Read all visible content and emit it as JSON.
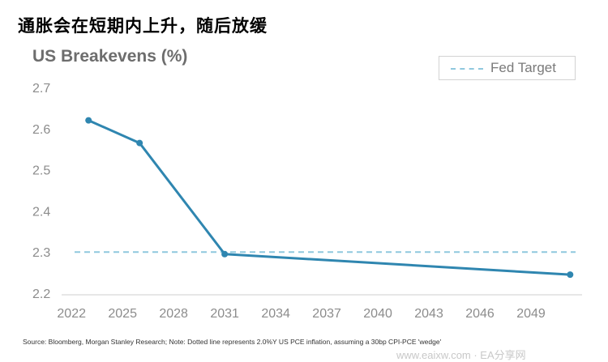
{
  "page": {
    "heading": "通胀会在短期内上升，随后放缓",
    "source": "Source: Bloomberg, Morgan Stanley Research; Note: Dotted line represents 2.0%Y US PCE inflation, assuming a 30bp CPI-PCE 'wedge'",
    "watermark": "www.eaixw.com · EA分享网"
  },
  "colors": {
    "series": "#2f86b0",
    "target": "#8fc8de",
    "axis": "#cfcfcf",
    "tick_text": "#8c8c8c"
  },
  "chart_data": {
    "type": "line",
    "title": "US Breakevens (%)",
    "xlabel": "",
    "ylabel": "",
    "x_ticks": [
      "2022",
      "2025",
      "2028",
      "2031",
      "2034",
      "2037",
      "2040",
      "2043",
      "2046",
      "2049"
    ],
    "y_ticks": [
      "2.2",
      "2.3",
      "2.4",
      "2.5",
      "2.6",
      "2.7"
    ],
    "xlim": [
      2021.8,
      2052
    ],
    "ylim": [
      2.2,
      2.7
    ],
    "grid": false,
    "legend_position": "top-right",
    "series": [
      {
        "name": "",
        "x": [
          2023,
          2026,
          2031,
          2051.3
        ],
        "y": [
          2.62,
          2.565,
          2.295,
          2.245
        ],
        "markers": true
      }
    ],
    "reference_lines": [
      {
        "name": "Fed Target",
        "y": 2.3,
        "style": "dashed"
      }
    ]
  }
}
